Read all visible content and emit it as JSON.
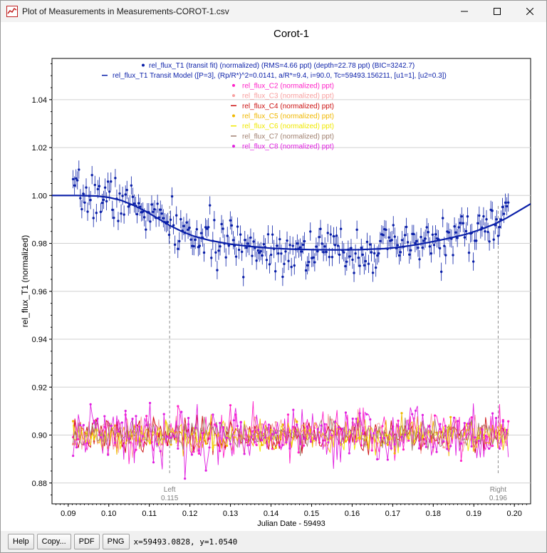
{
  "window": {
    "title": "Plot of Measurements in Measurements-COROT-1.csv",
    "controls": [
      "minimize",
      "maximize",
      "close"
    ]
  },
  "toolbar": {
    "buttons": [
      {
        "label": "Help"
      },
      {
        "label": "Copy..."
      },
      {
        "label": "PDF"
      },
      {
        "label": "PNG"
      }
    ],
    "coords": "x=59493.0828, y=1.0540"
  },
  "chart_data": {
    "type": "scatter",
    "title": "Corot-1",
    "xlabel": "Julian Date - 59493",
    "ylabel": "rel_flux_T1 (normalized)",
    "xlim": [
      0.086,
      0.204
    ],
    "ylim": [
      0.8713,
      1.0572
    ],
    "grid": true,
    "legend_position": "top-center",
    "x_ticks": [
      "0.09",
      "0.10",
      "0.11",
      "0.12",
      "0.13",
      "0.14",
      "0.15",
      "0.16",
      "0.17",
      "0.18",
      "0.19",
      "0.20"
    ],
    "y_ticks": [
      "0.88",
      "0.90",
      "0.92",
      "0.94",
      "0.96",
      "0.98",
      "1.00",
      "1.02",
      "1.04"
    ],
    "markers": [
      {
        "label": "Left",
        "value_label": "0.115",
        "x": 0.115
      },
      {
        "label": "Right",
        "value_label": "0.196",
        "x": 0.196
      }
    ],
    "legend": [
      {
        "text": "rel_flux_T1 (transit fit) (normalized) (RMS=4.66 ppt) (depth=22.78 ppt) (BIC=3242.7)",
        "color": "#0a1fa8",
        "symbol": "dot"
      },
      {
        "text": "rel_flux_T1 Transit Model ([P=3], (Rp/R*)^2=0.0141, a/R*=9.4, i=90.0, Tc=59493.156211, [u1=1], [u2=0.3])",
        "color": "#0a1fa8",
        "symbol": "line"
      },
      {
        "text": "rel_flux_C2 (normalized) ppt)",
        "color": "#ff22c8",
        "symbol": "dot"
      },
      {
        "text": "rel_flux_C3 (normalized) ppt)",
        "color": "#f8a0a0",
        "symbol": "dot"
      },
      {
        "text": "rel_flux_C4 (normalized) ppt)",
        "color": "#cc1010",
        "symbol": "line"
      },
      {
        "text": "rel_flux_C5 (normalized) ppt)",
        "color": "#f0b800",
        "symbol": "dot"
      },
      {
        "text": "rel_flux_C6 (normalized) ppt)",
        "color": "#f0e800",
        "symbol": "line"
      },
      {
        "text": "rel_flux_C7 (normalized) ppt)",
        "color": "#a08070",
        "symbol": "line"
      },
      {
        "text": "rel_flux_C8 (normalized) ppt)",
        "color": "#e020e0",
        "symbol": "dot"
      }
    ],
    "series": [
      {
        "name": "rel_flux_T1 Transit Model",
        "color": "#0a1fa8",
        "kind": "model",
        "x": [
          0.086,
          0.092,
          0.097,
          0.1,
          0.103,
          0.106,
          0.109,
          0.112,
          0.115,
          0.118,
          0.121,
          0.125,
          0.13,
          0.135,
          0.14,
          0.145,
          0.15,
          0.156,
          0.162,
          0.168,
          0.172,
          0.176,
          0.18,
          0.184,
          0.188,
          0.192,
          0.195,
          0.198,
          0.201,
          0.204
        ],
        "y": [
          1.0,
          1.0,
          0.9998,
          0.9992,
          0.998,
          0.996,
          0.9935,
          0.9905,
          0.9875,
          0.985,
          0.983,
          0.9812,
          0.9797,
          0.9787,
          0.978,
          0.9776,
          0.9774,
          0.9773,
          0.9774,
          0.9778,
          0.9785,
          0.9795,
          0.9808,
          0.9822,
          0.9838,
          0.986,
          0.988,
          0.9905,
          0.9935,
          0.9965
        ]
      },
      {
        "name": "rel_flux_T1 (transit fit)",
        "color": "#0a1fa8",
        "kind": "points",
        "noise": 0.0047,
        "error": 0.0038,
        "seed": 7,
        "x_start": 0.0912,
        "x_end": 0.1985,
        "count": 300,
        "model_series": 0
      },
      {
        "name": "rel_flux_C2",
        "color": "#ff22c8",
        "kind": "noise",
        "center": 0.9005,
        "sd": 0.005,
        "seed": 11,
        "markers": true,
        "marker_every": 3,
        "x_start": 0.0912,
        "x_end": 0.1985,
        "count": 250
      },
      {
        "name": "rel_flux_C3",
        "color": "#f8a0a0",
        "kind": "noise",
        "center": 0.9,
        "sd": 0.0035,
        "seed": 23,
        "markers": true,
        "marker_every": 4,
        "x_start": 0.0912,
        "x_end": 0.1985,
        "count": 250
      },
      {
        "name": "rel_flux_C4",
        "color": "#cc1010",
        "kind": "noise",
        "center": 0.9,
        "sd": 0.0035,
        "seed": 37,
        "markers": false,
        "x_start": 0.0912,
        "x_end": 0.1985,
        "count": 250
      },
      {
        "name": "rel_flux_C5",
        "color": "#f0b800",
        "kind": "noise",
        "center": 0.9,
        "sd": 0.0035,
        "seed": 41,
        "markers": true,
        "marker_every": 4,
        "x_start": 0.0912,
        "x_end": 0.1985,
        "count": 250
      },
      {
        "name": "rel_flux_C6",
        "color": "#f0e800",
        "kind": "noise",
        "center": 0.9,
        "sd": 0.003,
        "seed": 53,
        "markers": false,
        "x_start": 0.0912,
        "x_end": 0.1985,
        "count": 250
      },
      {
        "name": "rel_flux_C7",
        "color": "#a08070",
        "kind": "noise",
        "center": 0.9,
        "sd": 0.003,
        "seed": 67,
        "markers": false,
        "x_start": 0.0912,
        "x_end": 0.1985,
        "count": 250
      },
      {
        "name": "rel_flux_C8",
        "color": "#e020e0",
        "kind": "noise",
        "center": 0.9005,
        "sd": 0.006,
        "seed": 79,
        "markers": true,
        "marker_every": 2,
        "x_start": 0.0912,
        "x_end": 0.1985,
        "count": 250
      }
    ]
  }
}
